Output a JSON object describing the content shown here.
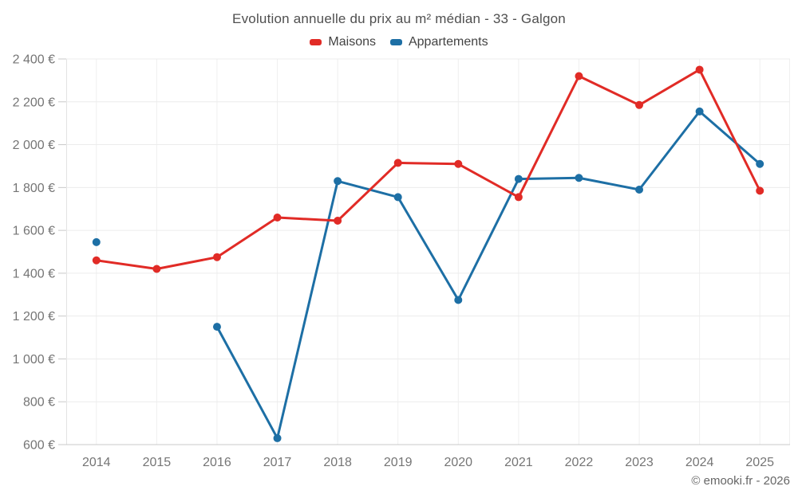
{
  "footer": {
    "credit": "© emooki.fr - 2026"
  },
  "chart_data": {
    "type": "line",
    "title": "Evolution annuelle du prix au m² médian - 33 - Galgon",
    "x": [
      "2014",
      "2015",
      "2016",
      "2017",
      "2018",
      "2019",
      "2020",
      "2021",
      "2022",
      "2023",
      "2024",
      "2025"
    ],
    "series": [
      {
        "name": "Maisons",
        "color": "#e12b26",
        "values": [
          1460,
          1420,
          1475,
          1660,
          1645,
          1915,
          1910,
          1755,
          2320,
          2185,
          2350,
          1785
        ]
      },
      {
        "name": "Appartements",
        "color": "#1d6fa5",
        "values": [
          1545,
          null,
          1150,
          630,
          1830,
          1755,
          1275,
          1840,
          1845,
          1790,
          2155,
          1910
        ]
      }
    ],
    "xlabel": "",
    "ylabel": "",
    "ylim": [
      600,
      2400
    ],
    "ytick_step": 200,
    "ytick_suffix": " €",
    "grid": true,
    "legend_position": "top",
    "draw_order": "first-series-on-top"
  }
}
